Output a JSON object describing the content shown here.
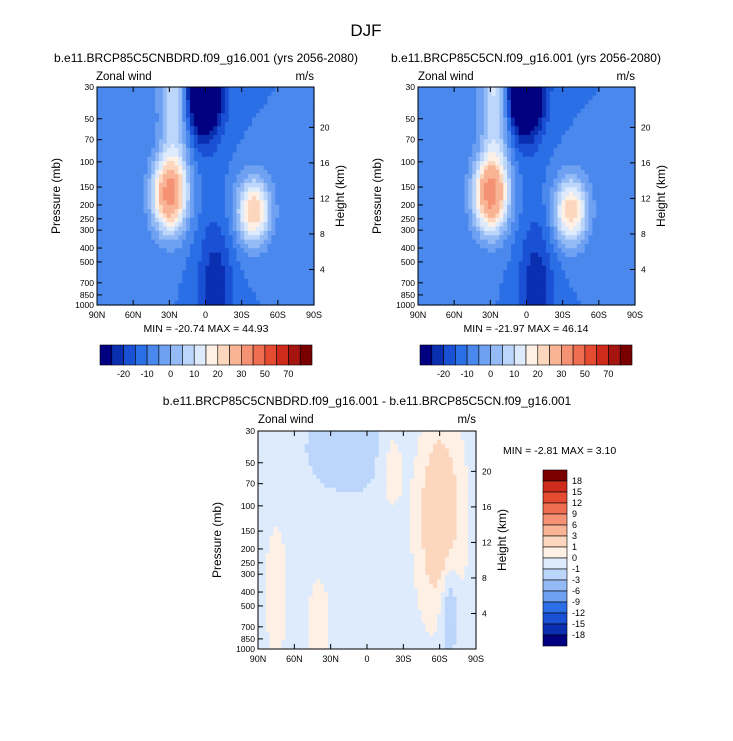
{
  "figure_title": "DJF",
  "palettes": {
    "abs": [
      "#000080",
      "#0a2fb0",
      "#1a50d4",
      "#2b6fe6",
      "#4a88ee",
      "#6ea1f2",
      "#95bbf6",
      "#bcd5fa",
      "#ddebfd",
      "#fef0e4",
      "#fcd6bd",
      "#f9b496",
      "#f59274",
      "#ef6e51",
      "#e54b31",
      "#cf2b1c",
      "#a5140e",
      "#7a0000"
    ],
    "diff": [
      "#000080",
      "#0a2fb0",
      "#1a50d4",
      "#2b6fe6",
      "#6ea1f2",
      "#95bbf6",
      "#bcd5fa",
      "#ddebfd",
      "#fef0e4",
      "#fcd6bd",
      "#f9b496",
      "#f59274",
      "#ef6e51",
      "#e54b31",
      "#cf2b1c",
      "#7a0000"
    ]
  },
  "chart_data": [
    {
      "id": "top-left",
      "type": "contour",
      "title": "b.e11.BRCP85C5CNBDRD.f09_g16.001 (yrs 2056-2080)",
      "left_label": "Zonal wind",
      "right_label": "m/s",
      "xlabel": "",
      "ylabel": "Pressure (mb)",
      "ylabel_right": "Height (km)",
      "x_ticks": [
        "90N",
        "60N",
        "30N",
        "0",
        "30S",
        "60S",
        "90S"
      ],
      "y_ticks": [
        "30",
        "50",
        "70",
        "100",
        "150",
        "200",
        "250",
        "300",
        "400",
        "500",
        "700",
        "850",
        "1000"
      ],
      "y_tick_values": [
        30,
        50,
        70,
        100,
        150,
        200,
        250,
        300,
        400,
        500,
        700,
        850,
        1000
      ],
      "height_ticks": [
        "20",
        "16",
        "12",
        "8",
        "4"
      ],
      "height_tick_values": [
        20,
        16,
        12,
        8,
        4
      ],
      "stats": "MIN = -20.74  MAX = 44.93",
      "min": -20.74,
      "max": 44.93,
      "palette": "abs",
      "colorbar_labels": [
        "-20",
        "-10",
        "0",
        "10",
        "20",
        "30",
        "50",
        "70"
      ],
      "fields": [
        {
          "x": 30,
          "y": 170,
          "sx": 10,
          "sy": 0.42,
          "a": 46
        },
        {
          "x": -40,
          "y": 220,
          "sx": 10,
          "sy": 0.38,
          "a": 35
        },
        {
          "x": 2,
          "y": 30,
          "sx": 11,
          "sy": 0.55,
          "a": -42
        },
        {
          "x": 25,
          "y": 30,
          "sx": 9,
          "sy": 1.0,
          "a": 22
        },
        {
          "x": -8,
          "y": 800,
          "sx": 10,
          "sy": 0.8,
          "a": -14
        }
      ],
      "base": -5
    },
    {
      "id": "top-right",
      "type": "contour",
      "title": "b.e11.BRCP85C5CN.f09_g16.001 (yrs 2056-2080)",
      "left_label": "Zonal wind",
      "right_label": "m/s",
      "xlabel": "",
      "ylabel": "Pressure (mb)",
      "ylabel_right": "Height (km)",
      "x_ticks": [
        "90N",
        "60N",
        "30N",
        "0",
        "30S",
        "60S",
        "90S"
      ],
      "y_ticks": [
        "30",
        "50",
        "70",
        "100",
        "150",
        "200",
        "250",
        "300",
        "400",
        "500",
        "700",
        "850",
        "1000"
      ],
      "y_tick_values": [
        30,
        50,
        70,
        100,
        150,
        200,
        250,
        300,
        400,
        500,
        700,
        850,
        1000
      ],
      "height_ticks": [
        "20",
        "16",
        "12",
        "8",
        "4"
      ],
      "height_tick_values": [
        20,
        16,
        12,
        8,
        4
      ],
      "stats": "MIN = -21.97  MAX = 46.14",
      "min": -21.97,
      "max": 46.14,
      "palette": "abs",
      "colorbar_labels": [
        "-20",
        "-10",
        "0",
        "10",
        "20",
        "30",
        "50",
        "70"
      ],
      "fields": [
        {
          "x": 30,
          "y": 170,
          "sx": 10,
          "sy": 0.42,
          "a": 47
        },
        {
          "x": -37,
          "y": 220,
          "sx": 10,
          "sy": 0.38,
          "a": 34
        },
        {
          "x": 2,
          "y": 30,
          "sx": 11,
          "sy": 0.55,
          "a": -44
        },
        {
          "x": 25,
          "y": 30,
          "sx": 9,
          "sy": 1.0,
          "a": 24
        },
        {
          "x": -8,
          "y": 800,
          "sx": 10,
          "sy": 0.8,
          "a": -14
        }
      ],
      "base": -5
    },
    {
      "id": "bottom",
      "type": "contour",
      "title": "b.e11.BRCP85C5CNBDRD.f09_g16.001 - b.e11.BRCP85C5CN.f09_g16.001",
      "left_label": "Zonal wind",
      "right_label": "m/s",
      "xlabel": "",
      "ylabel": "Pressure (mb)",
      "ylabel_right": "Height (km)",
      "x_ticks": [
        "90N",
        "60N",
        "30N",
        "0",
        "30S",
        "60S",
        "90S"
      ],
      "y_ticks": [
        "30",
        "50",
        "70",
        "100",
        "150",
        "200",
        "250",
        "300",
        "400",
        "500",
        "700",
        "850",
        "1000"
      ],
      "y_tick_values": [
        30,
        50,
        70,
        100,
        150,
        200,
        250,
        300,
        400,
        500,
        700,
        850,
        1000
      ],
      "height_ticks": [
        "20",
        "16",
        "12",
        "8",
        "4"
      ],
      "height_tick_values": [
        20,
        16,
        12,
        8,
        4
      ],
      "stats": "MIN =  -2.81  MAX =   3.10",
      "min": -2.81,
      "max": 3.1,
      "palette": "diff",
      "colorbar_labels": [
        "18",
        "15",
        "12",
        "9",
        "6",
        "3",
        "1",
        "0",
        "-1",
        "-3",
        "-6",
        "-9",
        "-12",
        "-15",
        "-18"
      ],
      "fields": [
        {
          "x": -60,
          "y": 120,
          "sx": 12,
          "sy": 1.0,
          "a": 3.0
        },
        {
          "x": 15,
          "y": 40,
          "sx": 25,
          "sy": 0.5,
          "a": -1.6
        },
        {
          "x": -68,
          "y": 500,
          "sx": 5,
          "sy": 0.6,
          "a": -2.0
        },
        {
          "x": 75,
          "y": 400,
          "sx": 6,
          "sy": 0.7,
          "a": 1.2
        },
        {
          "x": 40,
          "y": 700,
          "sx": 6,
          "sy": 0.5,
          "a": 1.2
        },
        {
          "x": -20,
          "y": 50,
          "sx": 8,
          "sy": 0.5,
          "a": 1.2
        }
      ],
      "base": -0.4
    }
  ]
}
